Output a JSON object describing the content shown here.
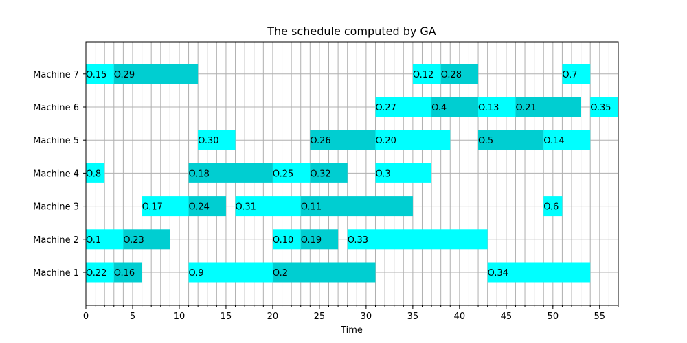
{
  "chart_data": {
    "type": "gantt",
    "title": "The schedule computed by GA",
    "xlabel": "Time",
    "ylabel": "",
    "xlim": [
      0,
      57
    ],
    "x_ticks": [
      0,
      5,
      10,
      15,
      20,
      25,
      30,
      35,
      40,
      45,
      50,
      55
    ],
    "grid": true,
    "colors": {
      "light": "#00FFFF",
      "dark": "#00CED1",
      "grid": "#b0b0b0"
    },
    "machines": [
      "Machine 1",
      "Machine 2",
      "Machine 3",
      "Machine 4",
      "Machine 5",
      "Machine 6",
      "Machine 7"
    ],
    "tasks": [
      {
        "machine": "Machine 1",
        "label": "O.22",
        "start": 0,
        "end": 3,
        "shade": "light"
      },
      {
        "machine": "Machine 1",
        "label": "O.16",
        "start": 3,
        "end": 6,
        "shade": "dark"
      },
      {
        "machine": "Machine 1",
        "label": "O.9",
        "start": 11,
        "end": 20,
        "shade": "light"
      },
      {
        "machine": "Machine 1",
        "label": "O.2",
        "start": 20,
        "end": 31,
        "shade": "dark"
      },
      {
        "machine": "Machine 1",
        "label": "O.34",
        "start": 43,
        "end": 54,
        "shade": "light"
      },
      {
        "machine": "Machine 2",
        "label": "O.1",
        "start": 0,
        "end": 4,
        "shade": "light"
      },
      {
        "machine": "Machine 2",
        "label": "O.23",
        "start": 4,
        "end": 9,
        "shade": "dark"
      },
      {
        "machine": "Machine 2",
        "label": "O.10",
        "start": 20,
        "end": 23,
        "shade": "light"
      },
      {
        "machine": "Machine 2",
        "label": "O.19",
        "start": 23,
        "end": 27,
        "shade": "dark"
      },
      {
        "machine": "Machine 2",
        "label": "O.33",
        "start": 28,
        "end": 43,
        "shade": "light"
      },
      {
        "machine": "Machine 3",
        "label": "O.17",
        "start": 6,
        "end": 11,
        "shade": "light"
      },
      {
        "machine": "Machine 3",
        "label": "O.24",
        "start": 11,
        "end": 15,
        "shade": "dark"
      },
      {
        "machine": "Machine 3",
        "label": "O.31",
        "start": 16,
        "end": 23,
        "shade": "light"
      },
      {
        "machine": "Machine 3",
        "label": "O.11",
        "start": 23,
        "end": 35,
        "shade": "dark"
      },
      {
        "machine": "Machine 3",
        "label": "O.6",
        "start": 49,
        "end": 51,
        "shade": "light"
      },
      {
        "machine": "Machine 4",
        "label": "O.8",
        "start": 0,
        "end": 2,
        "shade": "light"
      },
      {
        "machine": "Machine 4",
        "label": "O.18",
        "start": 11,
        "end": 20,
        "shade": "dark"
      },
      {
        "machine": "Machine 4",
        "label": "O.25",
        "start": 20,
        "end": 24,
        "shade": "light"
      },
      {
        "machine": "Machine 4",
        "label": "O.32",
        "start": 24,
        "end": 28,
        "shade": "dark"
      },
      {
        "machine": "Machine 4",
        "label": "O.3",
        "start": 31,
        "end": 37,
        "shade": "light"
      },
      {
        "machine": "Machine 5",
        "label": "O.30",
        "start": 12,
        "end": 16,
        "shade": "light"
      },
      {
        "machine": "Machine 5",
        "label": "O.26",
        "start": 24,
        "end": 31,
        "shade": "dark"
      },
      {
        "machine": "Machine 5",
        "label": "O.20",
        "start": 31,
        "end": 39,
        "shade": "light"
      },
      {
        "machine": "Machine 5",
        "label": "O.5",
        "start": 42,
        "end": 49,
        "shade": "dark"
      },
      {
        "machine": "Machine 5",
        "label": "O.14",
        "start": 49,
        "end": 54,
        "shade": "light"
      },
      {
        "machine": "Machine 6",
        "label": "O.27",
        "start": 31,
        "end": 37,
        "shade": "light"
      },
      {
        "machine": "Machine 6",
        "label": "O.4",
        "start": 37,
        "end": 42,
        "shade": "dark"
      },
      {
        "machine": "Machine 6",
        "label": "O.13",
        "start": 42,
        "end": 46,
        "shade": "light"
      },
      {
        "machine": "Machine 6",
        "label": "O.21",
        "start": 46,
        "end": 53,
        "shade": "dark"
      },
      {
        "machine": "Machine 6",
        "label": "O.35",
        "start": 54,
        "end": 57,
        "shade": "light"
      },
      {
        "machine": "Machine 7",
        "label": "O.15",
        "start": 0,
        "end": 3,
        "shade": "light"
      },
      {
        "machine": "Machine 7",
        "label": "O.29",
        "start": 3,
        "end": 12,
        "shade": "dark"
      },
      {
        "machine": "Machine 7",
        "label": "O.12",
        "start": 35,
        "end": 38,
        "shade": "light"
      },
      {
        "machine": "Machine 7",
        "label": "O.28",
        "start": 38,
        "end": 42,
        "shade": "dark"
      },
      {
        "machine": "Machine 7",
        "label": "O.7",
        "start": 51,
        "end": 54,
        "shade": "light"
      }
    ]
  }
}
